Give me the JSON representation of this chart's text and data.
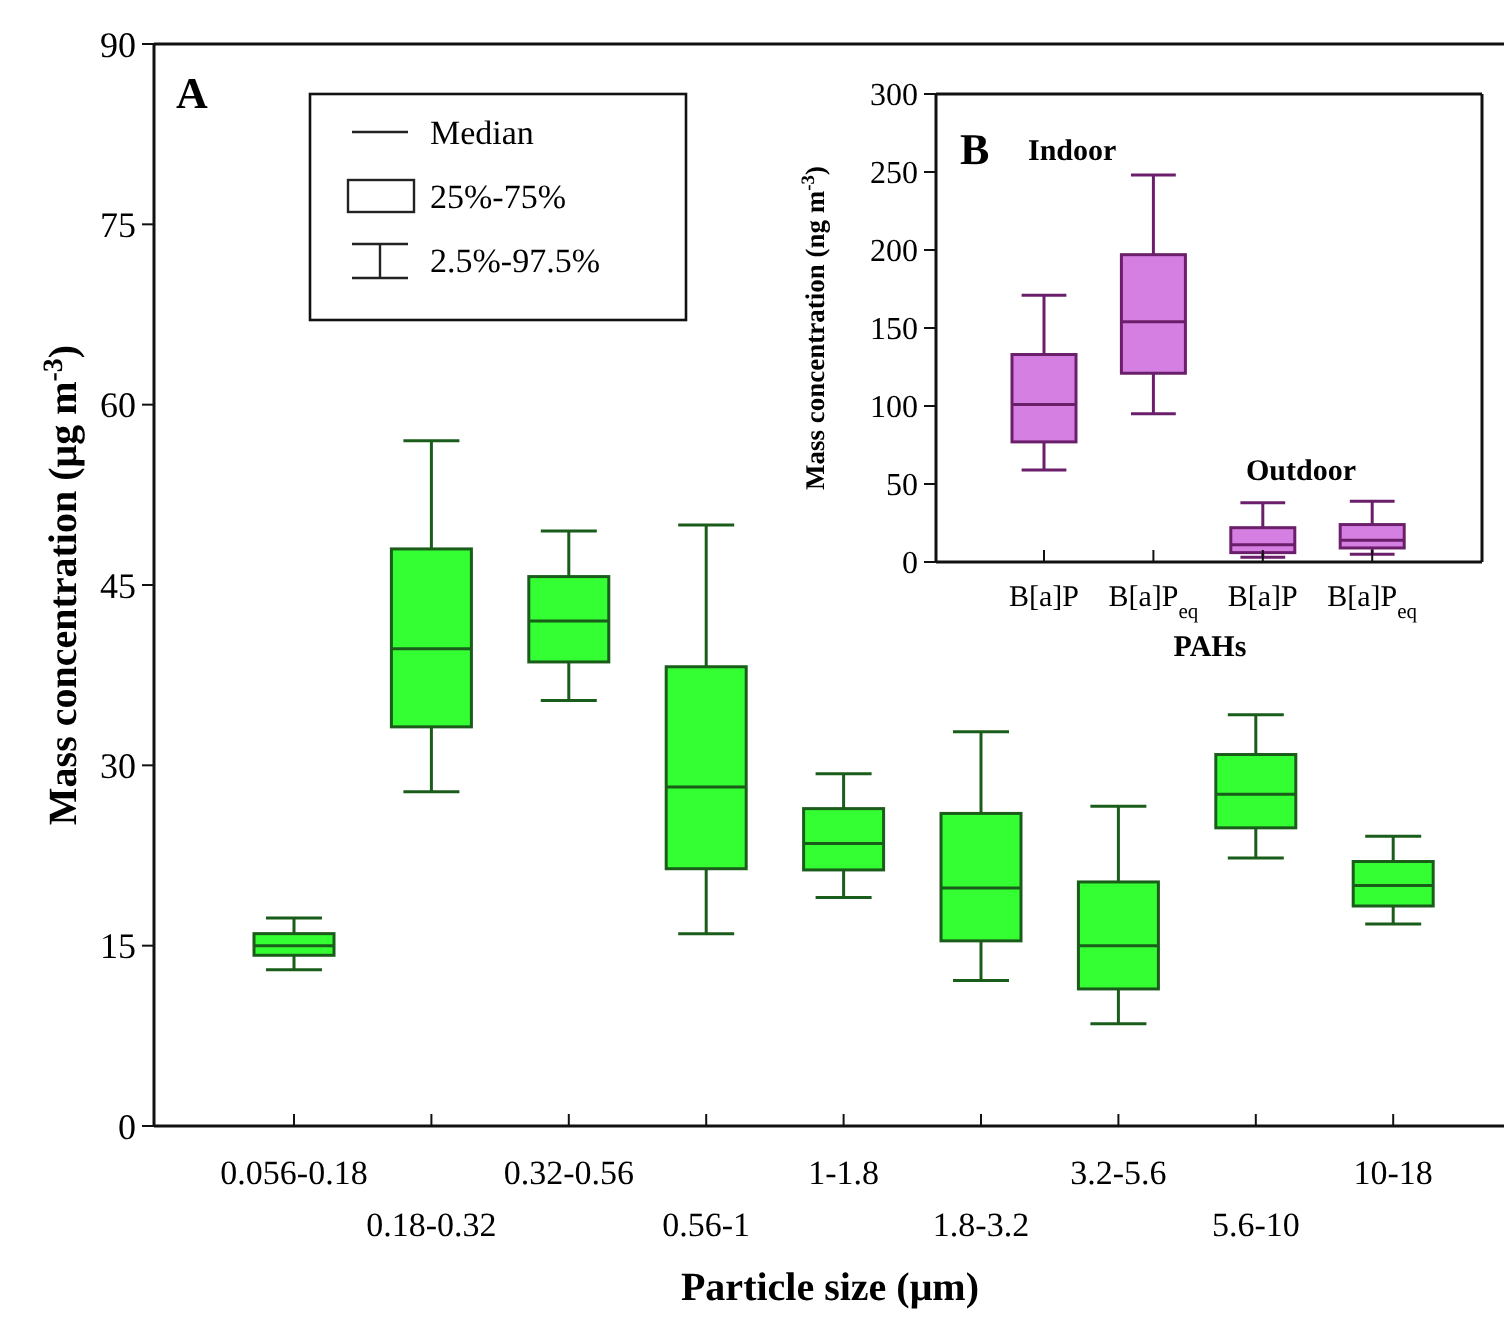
{
  "chart_data": [
    {
      "type": "box",
      "xlabel": "Particle size (μm)",
      "ylabel": "Mass concentration (μg m$^{-3}$)",
      "categories": [
        "0.056-0.18",
        "0.18-0.32",
        "0.32-0.56",
        "0.56-1",
        "1-1.8",
        "1.8-3.2",
        "3.2-5.6",
        "5.6-10",
        "10-18"
      ],
      "ylim": [
        0,
        90
      ],
      "yticks": [
        0,
        15,
        30,
        45,
        60,
        75,
        90
      ],
      "color": "#33ff33",
      "annotations": [
        "A",
        "Median",
        "25%-75%",
        "2.5%-97.5%"
      ],
      "boxes": [
        {
          "low": 13,
          "q1": 14.2,
          "median": 15,
          "q3": 16,
          "high": 17.3
        },
        {
          "low": 27.8,
          "q1": 33.2,
          "median": 39.7,
          "q3": 48,
          "high": 57
        },
        {
          "low": 35.4,
          "q1": 38.6,
          "median": 42,
          "q3": 45.7,
          "high": 49.5
        },
        {
          "low": 16,
          "q1": 21.4,
          "median": 28.2,
          "q3": 38.2,
          "high": 50
        },
        {
          "low": 19,
          "q1": 21.3,
          "median": 23.5,
          "q3": 26.4,
          "high": 29.3
        },
        {
          "low": 12.1,
          "q1": 15.4,
          "median": 19.8,
          "q3": 26,
          "high": 32.8
        },
        {
          "low": 8.5,
          "q1": 11.4,
          "median": 15,
          "q3": 20.3,
          "high": 26.6
        },
        {
          "low": 22.3,
          "q1": 24.8,
          "median": 27.6,
          "q3": 30.9,
          "high": 34.2
        },
        {
          "low": 16.8,
          "q1": 18.3,
          "median": 20,
          "q3": 22,
          "high": 24.1
        }
      ]
    },
    {
      "type": "box",
      "xlabel": "PAHs",
      "ylabel": "Mass concentration (ng m$^{-3}$)",
      "categories": [
        "B[a]P",
        "B[a]P$_{eq}$",
        "B[a]P",
        "B[a]P$_{eq}$"
      ],
      "ylim": [
        0,
        300
      ],
      "yticks": [
        0,
        50,
        100,
        150,
        200,
        250,
        300
      ],
      "color": "#d67fe3",
      "annotations": [
        "B",
        "Indoor",
        "Outdoor"
      ],
      "boxes": [
        {
          "low": 59,
          "q1": 77,
          "median": 101,
          "q3": 133,
          "high": 171
        },
        {
          "low": 95,
          "q1": 121,
          "median": 154,
          "q3": 197,
          "high": 248
        },
        {
          "low": 3,
          "q1": 6,
          "median": 11,
          "q3": 22,
          "high": 38
        },
        {
          "low": 5,
          "q1": 9,
          "median": 14,
          "q3": 24,
          "high": 39
        }
      ]
    }
  ]
}
